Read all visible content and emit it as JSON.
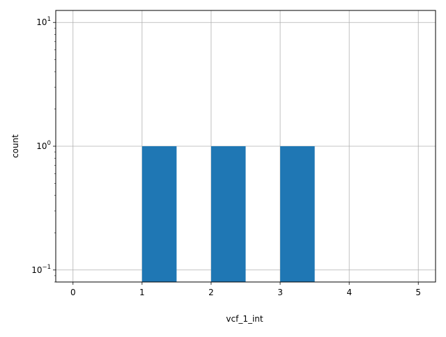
{
  "chart_data": {
    "type": "bar",
    "title": "",
    "xlabel": "vcf_1_int",
    "ylabel": "count",
    "xlim": [
      -0.25,
      5.25
    ],
    "ylim": [
      0.08,
      12.5
    ],
    "yscale": "log",
    "grid": true,
    "bar_color": "#1f77b4",
    "bins": [
      {
        "x0": 1.0,
        "x1": 1.5,
        "value": 1
      },
      {
        "x0": 2.0,
        "x1": 2.5,
        "value": 1
      },
      {
        "x0": 3.0,
        "x1": 3.5,
        "value": 1
      }
    ],
    "x_ticks": [
      {
        "value": 0,
        "label": "0"
      },
      {
        "value": 1,
        "label": "1"
      },
      {
        "value": 2,
        "label": "2"
      },
      {
        "value": 3,
        "label": "3"
      },
      {
        "value": 4,
        "label": "4"
      },
      {
        "value": 5,
        "label": "5"
      }
    ],
    "y_ticks": [
      {
        "value": 10,
        "base": "10",
        "exp": "1"
      },
      {
        "value": 1,
        "base": "10",
        "exp": "0"
      },
      {
        "value": 0.1,
        "base": "10",
        "exp": "−1"
      }
    ]
  }
}
